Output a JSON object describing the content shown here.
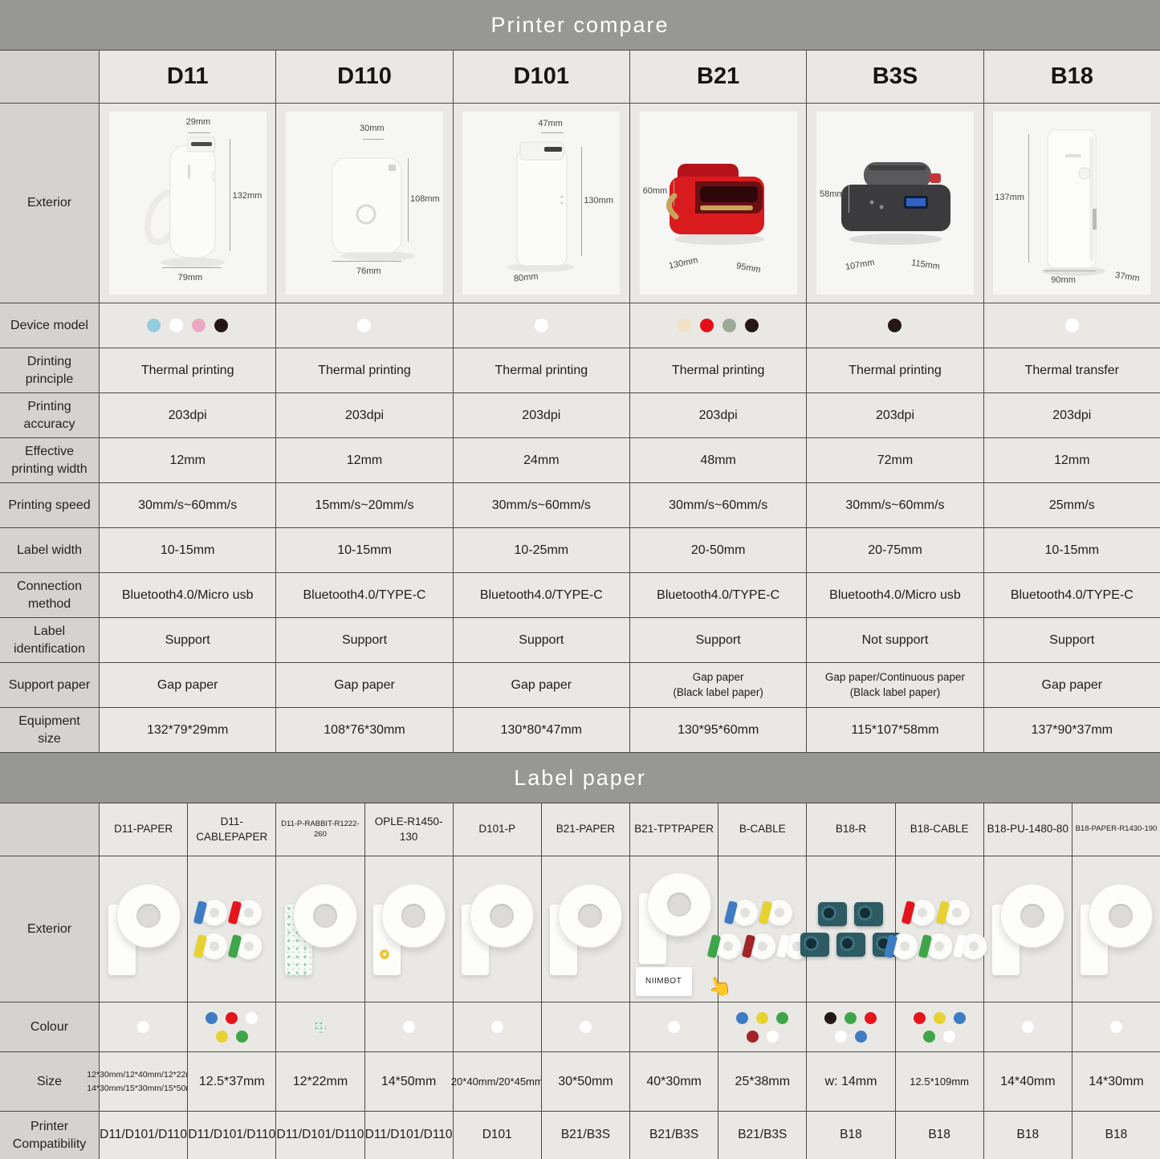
{
  "header": {
    "title": "Printer compare"
  },
  "section2": {
    "title": "Label paper"
  },
  "printer_table": {
    "row_labels": {
      "exterior": "Exterior",
      "device": "Device model",
      "principle": "Drinting principle",
      "accuracy": "Printing accuracy",
      "eff_width": "Effective printing width",
      "speed": "Printing speed",
      "label_width": "Label width",
      "connection": "Connection method",
      "identification": "Label identification",
      "support_paper": "Support paper",
      "equipment": "Equipment size"
    },
    "columns": [
      {
        "model": "D11",
        "dims": {
          "top": "29mm",
          "side": "132mm",
          "bottom": "79mm"
        },
        "device_colors": [
          "#92cedd",
          "#ffffff",
          "#eba8c3",
          "#231815"
        ],
        "principle": "Thermal printing",
        "accuracy": "203dpi",
        "eff_width": "12mm",
        "speed": "30mm/s~60mm/s",
        "label_width": "10-15mm",
        "connection": "Bluetooth4.0/Micro usb",
        "identification": "Support",
        "support_paper": "Gap paper",
        "equipment": "132*79*29mm"
      },
      {
        "model": "D110",
        "dims": {
          "top": "30mm",
          "side": "108mm",
          "bottom": "76mm"
        },
        "device_colors": [
          "#ffffff"
        ],
        "principle": "Thermal printing",
        "accuracy": "203dpi",
        "eff_width": "12mm",
        "speed": "15mm/s~20mm/s",
        "label_width": "10-15mm",
        "connection": "Bluetooth4.0/TYPE-C",
        "identification": "Support",
        "support_paper": "Gap paper",
        "equipment": "108*76*30mm"
      },
      {
        "model": "D101",
        "dims": {
          "top": "47mm",
          "side": "130mm",
          "bottom": "80mm"
        },
        "device_colors": [
          "#ffffff"
        ],
        "principle": "Thermal printing",
        "accuracy": "203dpi",
        "eff_width": "24mm",
        "speed": "30mm/s~60mm/s",
        "label_width": "10-25mm",
        "connection": "Bluetooth4.0/TYPE-C",
        "identification": "Support",
        "support_paper": "Gap paper",
        "equipment": "130*80*47mm"
      },
      {
        "model": "B21",
        "dims": {
          "left": "60mm",
          "bottom_left": "130mm",
          "bottom_right": "95mm"
        },
        "device_colors": [
          "#f0e2c2",
          "#e60f17",
          "#9cab97",
          "#231815"
        ],
        "principle": "Thermal printing",
        "accuracy": "203dpi",
        "eff_width": "48mm",
        "speed": "30mm/s~60mm/s",
        "label_width": "20-50mm",
        "connection": "Bluetooth4.0/TYPE-C",
        "identification": "Support",
        "support_paper": [
          "Gap paper",
          "(Black label paper)"
        ],
        "equipment": "130*95*60mm"
      },
      {
        "model": "B3S",
        "dims": {
          "left": "58mm",
          "bottom_left": "107mm",
          "bottom_right": "115mm"
        },
        "device_colors": [
          "#231815"
        ],
        "principle": "Thermal printing",
        "accuracy": "203dpi",
        "eff_width": "72mm",
        "speed": "30mm/s~60mm/s",
        "label_width": "20-75mm",
        "connection": "Bluetooth4.0/Micro usb",
        "identification": "Not support",
        "support_paper": [
          "Gap paper/Continuous paper",
          "(Black label paper)"
        ],
        "equipment": "115*107*58mm"
      },
      {
        "model": "B18",
        "dims": {
          "left": "137mm",
          "bottom": "90mm",
          "bottom_right": "37mm"
        },
        "device_colors": [
          "#ffffff"
        ],
        "principle": "Thermal transfer",
        "accuracy": "203dpi",
        "eff_width": "12mm",
        "speed": "25mm/s",
        "label_width": "10-15mm",
        "connection": "Bluetooth4.0/TYPE-C",
        "identification": "Support",
        "support_paper": "Gap paper",
        "equipment": "137*90*37mm"
      }
    ]
  },
  "paper_table": {
    "row_labels": {
      "exterior": "Exterior",
      "colour": "Colour",
      "size": "Size",
      "compat": "Printer Compatibility"
    },
    "niimbot": "NIIMBOT",
    "columns": [
      {
        "name": "D11-PAPER",
        "dots": [
          "#ffffff"
        ],
        "size": [
          "12*30mm/12*40mm/12*22mm",
          "14*30mm/15*30mm/15*50mm"
        ],
        "compat": "D11/D101/D110"
      },
      {
        "name": "D11-CABLEPAPER",
        "dots": [
          "#3e7cc3",
          "#e4151b",
          "#ffffff",
          "#e7d231",
          "#3ea549"
        ],
        "size": "12.5*37mm",
        "compat": "D11/D101/D110"
      },
      {
        "name": "D11-P-RABBIT-R1222-260",
        "dots": [
          "pattern"
        ],
        "size": "12*22mm",
        "compat": "D11/D101/D110"
      },
      {
        "name": "OPLE-R1450-130",
        "dots": [
          "#ffffff"
        ],
        "size": "14*50mm",
        "compat": "D11/D101/D110"
      },
      {
        "name": "D101-P",
        "dots": [
          "#ffffff"
        ],
        "size": "20*40mm/20*45mm",
        "compat": "D101"
      },
      {
        "name": "B21-PAPER",
        "dots": [
          "#ffffff"
        ],
        "size": "30*50mm",
        "compat": "B21/B3S"
      },
      {
        "name": "B21-TPTPAPER",
        "dots": [
          "#ffffff"
        ],
        "size": "40*30mm",
        "compat": "B21/B3S"
      },
      {
        "name": "B-CABLE",
        "dots": [
          "#3e7cc3",
          "#e7d231",
          "#3ea549",
          "#a32327",
          "#ffffff"
        ],
        "size": "25*38mm",
        "compat": "B21/B3S"
      },
      {
        "name": "B18-R",
        "dots": [
          "#231815",
          "#3ea549",
          "#e4151b",
          "#ffffff",
          "#3e7cc3"
        ],
        "size": "w: 14mm",
        "compat": "B18"
      },
      {
        "name": "B18-CABLE",
        "dots": [
          "#e4151b",
          "#e7d231",
          "#3e7cc3",
          "#3ea549",
          "#ffffff"
        ],
        "size": "12.5*109mm",
        "compat": "B18"
      },
      {
        "name": "B18-PU-1480-80",
        "dots": [
          "#ffffff"
        ],
        "size": "14*40mm",
        "compat": "B18"
      },
      {
        "name": "B18-PAPER-R1430-190",
        "dots": [
          "#ffffff"
        ],
        "size": "14*30mm",
        "compat": "B18"
      }
    ]
  }
}
